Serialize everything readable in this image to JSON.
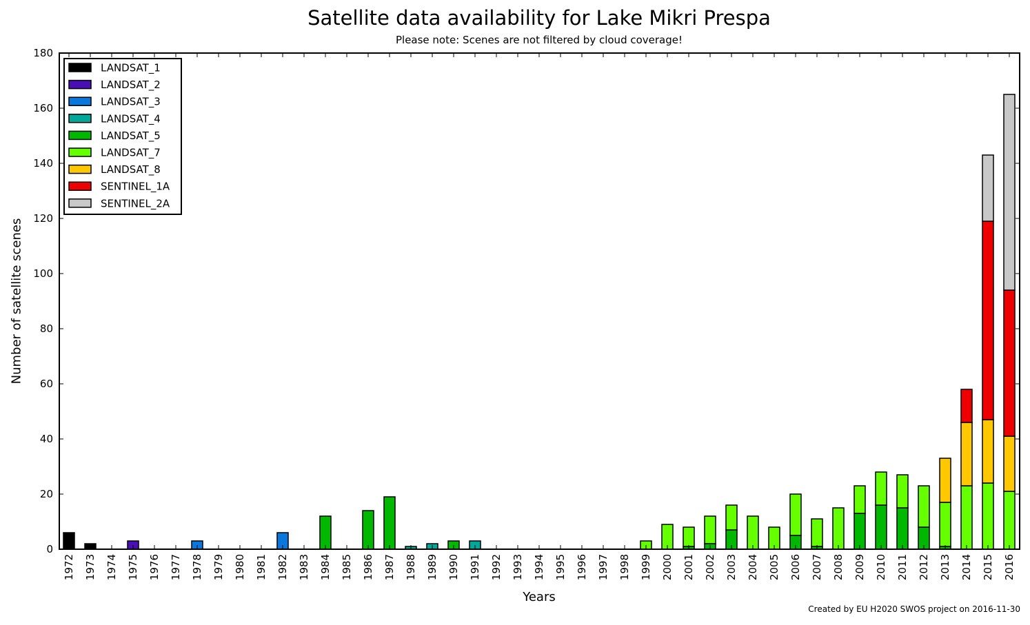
{
  "chart_data": {
    "type": "bar",
    "stacked": true,
    "title": "Satellite data availability for Lake Mikri Prespa",
    "subtitle": "Please note: Scenes are not filtered by cloud coverage!",
    "xlabel": "Years",
    "ylabel": "Number of satellite scenes",
    "ylim": [
      0,
      180
    ],
    "yticks": [
      0,
      20,
      40,
      60,
      80,
      100,
      120,
      140,
      160,
      180
    ],
    "legend_position": "top-left",
    "grid": false,
    "categories": [
      "1972",
      "1973",
      "1974",
      "1975",
      "1976",
      "1977",
      "1978",
      "1979",
      "1980",
      "1981",
      "1982",
      "1983",
      "1984",
      "1985",
      "1986",
      "1987",
      "1988",
      "1989",
      "1990",
      "1991",
      "1992",
      "1993",
      "1994",
      "1995",
      "1996",
      "1997",
      "1998",
      "1999",
      "2000",
      "2001",
      "2002",
      "2003",
      "2004",
      "2005",
      "2006",
      "2007",
      "2008",
      "2009",
      "2010",
      "2011",
      "2012",
      "2013",
      "2014",
      "2015",
      "2016"
    ],
    "series": [
      {
        "name": "LANDSAT_1",
        "color": "#000000",
        "values": [
          6,
          2,
          0,
          0,
          0,
          0,
          0,
          0,
          0,
          0,
          0,
          0,
          0,
          0,
          0,
          0,
          0,
          0,
          0,
          0,
          0,
          0,
          0,
          0,
          0,
          0,
          0,
          0,
          0,
          0,
          0,
          0,
          0,
          0,
          0,
          0,
          0,
          0,
          0,
          0,
          0,
          0,
          0,
          0,
          0
        ]
      },
      {
        "name": "LANDSAT_2",
        "color": "#4a0fb4",
        "values": [
          0,
          0,
          0,
          3,
          0,
          0,
          0,
          0,
          0,
          0,
          0,
          0,
          0,
          0,
          0,
          0,
          0,
          0,
          0,
          0,
          0,
          0,
          0,
          0,
          0,
          0,
          0,
          0,
          0,
          0,
          0,
          0,
          0,
          0,
          0,
          0,
          0,
          0,
          0,
          0,
          0,
          0,
          0,
          0,
          0
        ]
      },
      {
        "name": "LANDSAT_3",
        "color": "#0a77dc",
        "values": [
          0,
          0,
          0,
          0,
          0,
          0,
          3,
          0,
          0,
          0,
          6,
          0,
          0,
          0,
          0,
          0,
          0,
          0,
          0,
          0,
          0,
          0,
          0,
          0,
          0,
          0,
          0,
          0,
          0,
          0,
          0,
          0,
          0,
          0,
          0,
          0,
          0,
          0,
          0,
          0,
          0,
          0,
          0,
          0,
          0
        ]
      },
      {
        "name": "LANDSAT_4",
        "color": "#00a89a",
        "values": [
          0,
          0,
          0,
          0,
          0,
          0,
          0,
          0,
          0,
          0,
          0,
          0,
          0,
          0,
          0,
          0,
          1,
          2,
          0,
          3,
          0,
          0,
          0,
          0,
          0,
          0,
          0,
          0,
          0,
          0,
          0,
          0,
          0,
          0,
          0,
          0,
          0,
          0,
          0,
          0,
          0,
          0,
          0,
          0,
          0
        ]
      },
      {
        "name": "LANDSAT_5",
        "color": "#00b800",
        "values": [
          0,
          0,
          0,
          0,
          0,
          0,
          0,
          0,
          0,
          0,
          0,
          0,
          12,
          0,
          14,
          19,
          0,
          0,
          3,
          0,
          0,
          0,
          0,
          0,
          0,
          0,
          0,
          0,
          0,
          1,
          2,
          7,
          0,
          0,
          5,
          1,
          0,
          13,
          16,
          15,
          8,
          1,
          0,
          0,
          0
        ]
      },
      {
        "name": "LANDSAT_7",
        "color": "#66ff00",
        "values": [
          0,
          0,
          0,
          0,
          0,
          0,
          0,
          0,
          0,
          0,
          0,
          0,
          0,
          0,
          0,
          0,
          0,
          0,
          0,
          0,
          0,
          0,
          0,
          0,
          0,
          0,
          0,
          3,
          9,
          7,
          10,
          9,
          12,
          8,
          15,
          10,
          15,
          10,
          12,
          12,
          15,
          16,
          23,
          24,
          21
        ]
      },
      {
        "name": "LANDSAT_8",
        "color": "#ffc800",
        "values": [
          0,
          0,
          0,
          0,
          0,
          0,
          0,
          0,
          0,
          0,
          0,
          0,
          0,
          0,
          0,
          0,
          0,
          0,
          0,
          0,
          0,
          0,
          0,
          0,
          0,
          0,
          0,
          0,
          0,
          0,
          0,
          0,
          0,
          0,
          0,
          0,
          0,
          0,
          0,
          0,
          0,
          16,
          23,
          23,
          20
        ]
      },
      {
        "name": "SENTINEL_1A",
        "color": "#ee0000",
        "values": [
          0,
          0,
          0,
          0,
          0,
          0,
          0,
          0,
          0,
          0,
          0,
          0,
          0,
          0,
          0,
          0,
          0,
          0,
          0,
          0,
          0,
          0,
          0,
          0,
          0,
          0,
          0,
          0,
          0,
          0,
          0,
          0,
          0,
          0,
          0,
          0,
          0,
          0,
          0,
          0,
          0,
          0,
          12,
          72,
          53
        ]
      },
      {
        "name": "SENTINEL_2A",
        "color": "#c8c8c8",
        "values": [
          0,
          0,
          0,
          0,
          0,
          0,
          0,
          0,
          0,
          0,
          0,
          0,
          0,
          0,
          0,
          0,
          0,
          0,
          0,
          0,
          0,
          0,
          0,
          0,
          0,
          0,
          0,
          0,
          0,
          0,
          0,
          0,
          0,
          0,
          0,
          0,
          0,
          0,
          0,
          0,
          0,
          0,
          0,
          24,
          71
        ]
      }
    ],
    "annotation": "Created by EU H2020 SWOS project on 2016-11-30"
  }
}
